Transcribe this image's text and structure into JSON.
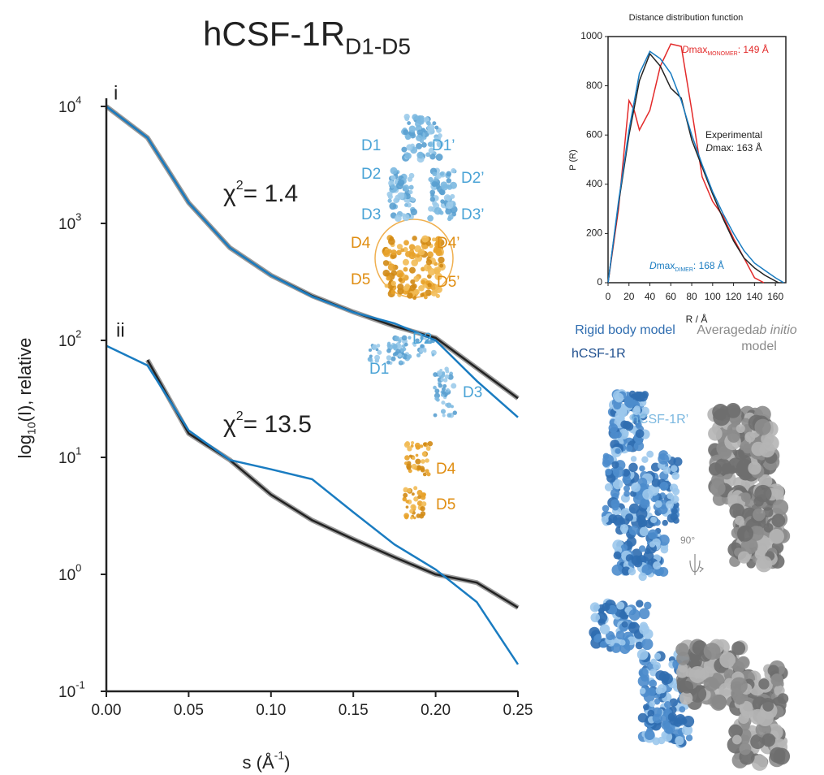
{
  "chart_data": [
    {
      "type": "line",
      "log_y": true,
      "title": "hCSF-1R",
      "title_subscript": "D1-D5",
      "ylabel": {
        "prefix": "log",
        "sub": "10",
        "suffix": " (I), relative"
      },
      "xlabel": {
        "prefix": "s (Å",
        "sup": "-1",
        "suffix": ")"
      },
      "xlim": [
        0,
        0.25
      ],
      "xticks": [
        {
          "value": 0,
          "label": "0.00"
        },
        {
          "value": 0.05,
          "label": "0.05"
        },
        {
          "value": 0.1,
          "label": "0.10"
        },
        {
          "value": 0.15,
          "label": "0.15"
        },
        {
          "value": 0.2,
          "label": "0.20"
        },
        {
          "value": 0.25,
          "label": "0.25"
        }
      ],
      "ylim": [
        0.1,
        10000
      ],
      "yticks": [
        {
          "value": 10000,
          "label": "10",
          "exponent": "4"
        },
        {
          "value": 1000,
          "label": "10",
          "exponent": "3"
        },
        {
          "value": 100,
          "label": "10",
          "exponent": "2"
        },
        {
          "value": 10,
          "label": "10",
          "exponent": "1"
        },
        {
          "value": 1,
          "label": "10",
          "exponent": "0"
        },
        {
          "value": 0.1,
          "label": "10",
          "exponent": "-1"
        }
      ],
      "x": [
        0,
        0.025,
        0.05,
        0.075,
        0.1,
        0.125,
        0.15,
        0.175,
        0.2,
        0.225,
        0.25
      ],
      "series": [
        {
          "color": "#222222",
          "error_color": "#9a9a9a",
          "values": [
            10000,
            5400,
            1500,
            620,
            360,
            240,
            175,
            132,
            105,
            58,
            32
          ]
        },
        {
          "color": "#1a7cc1",
          "values": [
            10000,
            5400,
            1500,
            620,
            360,
            237,
            174,
            140,
            100,
            45,
            22
          ]
        },
        {
          "color": "#222222",
          "error_color": "#9a9a9a",
          "values": [
            null,
            68,
            16,
            9.5,
            4.8,
            2.9,
            2.0,
            1.4,
            1.0,
            0.85,
            0.52
          ]
        },
        {
          "color": "#1a7cc1",
          "values": [
            90,
            61,
            17,
            9.5,
            7.9,
            6.5,
            3.4,
            1.8,
            1.1,
            0.58,
            0.17
          ]
        }
      ],
      "annotations": [
        {
          "text": "i"
        },
        {
          "text": "ii"
        },
        {
          "text": "χ",
          "sup": "2",
          "rest": " = 1.4"
        },
        {
          "text": "χ",
          "sup": "2",
          "rest": " = 13.5"
        }
      ]
    },
    {
      "type": "line",
      "log_y": false,
      "title": "Distance distribution function",
      "xlabel": "R / Å",
      "ylabel": "P (R)",
      "xlim": [
        0,
        170
      ],
      "xticks": [
        0,
        20,
        40,
        60,
        80,
        100,
        120,
        140,
        160
      ],
      "ylim": [
        0,
        1000
      ],
      "yticks": [
        0,
        200,
        400,
        600,
        800,
        1000
      ],
      "series": [
        {
          "color": "#e32a2a",
          "x": [
            0,
            10,
            20,
            25,
            30,
            40,
            50,
            60,
            70,
            80,
            90,
            100,
            110,
            120,
            130,
            140,
            149
          ],
          "values": [
            0,
            300,
            740,
            700,
            620,
            700,
            880,
            970,
            960,
            700,
            430,
            330,
            270,
            180,
            100,
            20,
            0
          ]
        },
        {
          "color": "#222222",
          "x": [
            0,
            10,
            20,
            30,
            40,
            50,
            60,
            70,
            80,
            90,
            100,
            110,
            120,
            130,
            140,
            150,
            163
          ],
          "values": [
            0,
            320,
            600,
            820,
            930,
            880,
            790,
            750,
            580,
            470,
            360,
            260,
            170,
            100,
            60,
            30,
            0
          ]
        },
        {
          "color": "#1a7cc1",
          "x": [
            0,
            10,
            20,
            30,
            40,
            50,
            60,
            70,
            80,
            90,
            100,
            110,
            120,
            130,
            140,
            150,
            160,
            168
          ],
          "values": [
            0,
            330,
            620,
            850,
            940,
            910,
            850,
            740,
            600,
            480,
            370,
            280,
            200,
            130,
            80,
            50,
            20,
            0
          ]
        }
      ],
      "annotations": [
        {
          "parts": [
            "D",
            "max",
            "MONOMER",
            ": 149 Å"
          ],
          "color": "#e32a2a"
        },
        {
          "parts": [
            "Experimental"
          ],
          "color": "#222222"
        },
        {
          "parts": [
            "D",
            "max: 163 Å"
          ],
          "color": "#222222"
        },
        {
          "parts": [
            "D",
            "max",
            "DIMER",
            ": 168 Å"
          ],
          "color": "#1a7cc1"
        }
      ]
    }
  ],
  "figure_labels": {
    "model_i": [
      "D1",
      "D1’",
      "D2",
      "D2’",
      "D3",
      "D3’",
      "D4",
      "D4’",
      "D5",
      "D5’"
    ],
    "model_ii": [
      "D2",
      "D1",
      "D3",
      "D4",
      "D5"
    ],
    "rigid_body": "Rigid body model",
    "chain_a": "hCSF-1R",
    "chain_b": "hCSF-1R’",
    "averaged": [
      "Averaged ",
      "ab initio",
      "model"
    ],
    "rotation": "90°"
  }
}
